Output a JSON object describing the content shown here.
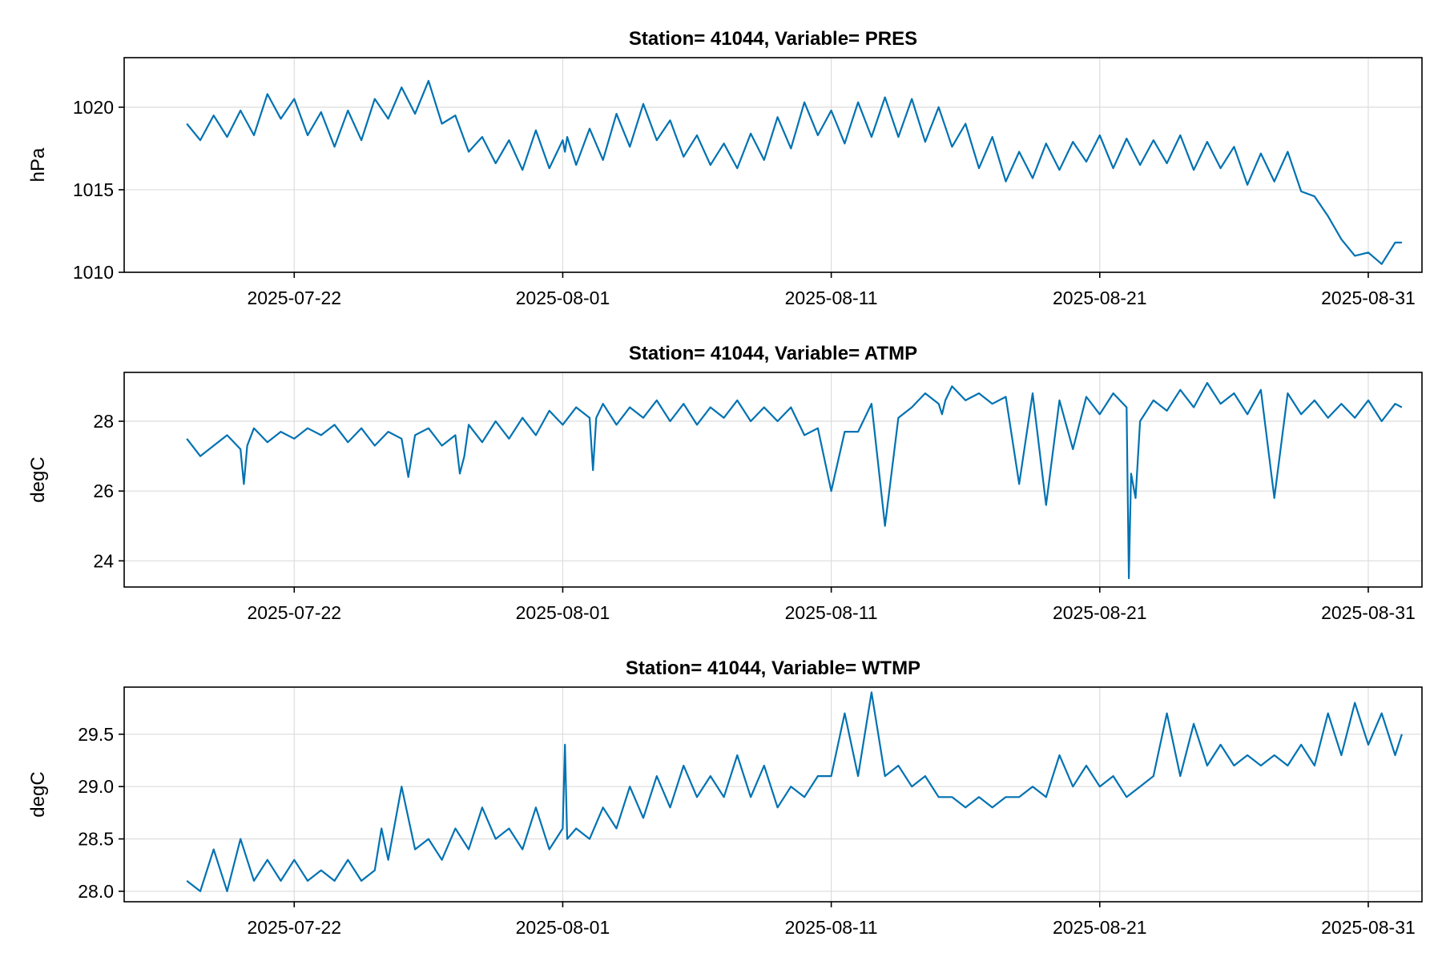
{
  "colors": {
    "series": "#0072b2"
  },
  "chart_data": [
    {
      "type": "line",
      "title": "Station= 41044, Variable= PRES",
      "xlabel": "",
      "ylabel": "hPa",
      "x_ticks": [
        "2025-07-22",
        "2025-08-01",
        "2025-08-11",
        "2025-08-21",
        "2025-08-31"
      ],
      "xlim": [
        "2025-07-15T16:00",
        "2025-09-02T00:00"
      ],
      "ylim": [
        1010,
        1023
      ],
      "y_ticks": [
        1010,
        1015,
        1020
      ],
      "y_tick_labels": [
        "1010",
        "1015",
        "1020"
      ],
      "grid": true,
      "series": [
        {
          "name": "",
          "x": [
            "2025-07-18T00:00",
            "2025-07-18T12:00",
            "2025-07-19T00:00",
            "2025-07-19T12:00",
            "2025-07-20T00:00",
            "2025-07-20T12:00",
            "2025-07-21T00:00",
            "2025-07-21T12:00",
            "2025-07-22T00:00",
            "2025-07-22T12:00",
            "2025-07-23T00:00",
            "2025-07-23T12:00",
            "2025-07-24T00:00",
            "2025-07-24T12:00",
            "2025-07-25T00:00",
            "2025-07-25T12:00",
            "2025-07-26T00:00",
            "2025-07-26T12:00",
            "2025-07-27T00:00",
            "2025-07-27T12:00",
            "2025-07-28T00:00",
            "2025-07-28T12:00",
            "2025-07-29T00:00",
            "2025-07-29T12:00",
            "2025-07-30T00:00",
            "2025-07-30T12:00",
            "2025-07-31T00:00",
            "2025-07-31T12:00",
            "2025-08-01T00:00",
            "2025-08-01T02:00",
            "2025-08-01T04:00",
            "2025-08-01T12:00",
            "2025-08-02T00:00",
            "2025-08-02T12:00",
            "2025-08-03T00:00",
            "2025-08-03T12:00",
            "2025-08-04T00:00",
            "2025-08-04T12:00",
            "2025-08-05T00:00",
            "2025-08-05T12:00",
            "2025-08-06T00:00",
            "2025-08-06T12:00",
            "2025-08-07T00:00",
            "2025-08-07T12:00",
            "2025-08-08T00:00",
            "2025-08-08T12:00",
            "2025-08-09T00:00",
            "2025-08-09T12:00",
            "2025-08-10T00:00",
            "2025-08-10T12:00",
            "2025-08-11T00:00",
            "2025-08-11T12:00",
            "2025-08-12T00:00",
            "2025-08-12T12:00",
            "2025-08-13T00:00",
            "2025-08-13T12:00",
            "2025-08-14T00:00",
            "2025-08-14T12:00",
            "2025-08-15T00:00",
            "2025-08-15T12:00",
            "2025-08-16T00:00",
            "2025-08-16T12:00",
            "2025-08-17T00:00",
            "2025-08-17T12:00",
            "2025-08-18T00:00",
            "2025-08-18T12:00",
            "2025-08-19T00:00",
            "2025-08-19T12:00",
            "2025-08-20T00:00",
            "2025-08-20T12:00",
            "2025-08-21T00:00",
            "2025-08-21T12:00",
            "2025-08-22T00:00",
            "2025-08-22T12:00",
            "2025-08-23T00:00",
            "2025-08-23T12:00",
            "2025-08-24T00:00",
            "2025-08-24T12:00",
            "2025-08-25T00:00",
            "2025-08-25T12:00",
            "2025-08-26T00:00",
            "2025-08-26T12:00",
            "2025-08-27T00:00",
            "2025-08-27T12:00",
            "2025-08-28T00:00",
            "2025-08-28T12:00",
            "2025-08-29T00:00",
            "2025-08-29T12:00",
            "2025-08-30T00:00",
            "2025-08-30T12:00",
            "2025-08-31T00:00",
            "2025-08-31T12:00",
            "2025-09-01T00:00",
            "2025-09-01T06:00"
          ],
          "y": [
            1019.0,
            1018.0,
            1019.5,
            1018.2,
            1019.8,
            1018.3,
            1020.8,
            1019.3,
            1020.5,
            1018.3,
            1019.7,
            1017.6,
            1019.8,
            1018.0,
            1020.5,
            1019.3,
            1021.2,
            1019.6,
            1021.6,
            1019.0,
            1019.5,
            1017.3,
            1018.2,
            1016.6,
            1018.0,
            1016.2,
            1018.6,
            1016.3,
            1018.0,
            1017.3,
            1018.2,
            1016.5,
            1018.7,
            1016.8,
            1019.6,
            1017.6,
            1020.2,
            1018.0,
            1019.2,
            1017.0,
            1018.3,
            1016.5,
            1017.8,
            1016.3,
            1018.4,
            1016.8,
            1019.4,
            1017.5,
            1020.3,
            1018.3,
            1019.8,
            1017.8,
            1020.3,
            1018.2,
            1020.6,
            1018.2,
            1020.5,
            1017.9,
            1020.0,
            1017.6,
            1019.0,
            1016.3,
            1018.2,
            1015.5,
            1017.3,
            1015.7,
            1017.8,
            1016.2,
            1017.9,
            1016.7,
            1018.3,
            1016.3,
            1018.1,
            1016.5,
            1018.0,
            1016.6,
            1018.3,
            1016.2,
            1017.9,
            1016.3,
            1017.6,
            1015.3,
            1017.2,
            1015.5,
            1017.3,
            1014.9,
            1014.6,
            1013.4,
            1012.0,
            1011.0,
            1011.2,
            1010.5,
            1011.8,
            1011.8
          ],
          "note": ""
        }
      ]
    },
    {
      "type": "line",
      "title": "Station= 41044, Variable= ATMP",
      "xlabel": "",
      "ylabel": "degC",
      "x_ticks": [
        "2025-07-22",
        "2025-08-01",
        "2025-08-11",
        "2025-08-21",
        "2025-08-31"
      ],
      "xlim": [
        "2025-07-15T16:00",
        "2025-09-02T00:00"
      ],
      "ylim": [
        23.25,
        29.4
      ],
      "y_ticks": [
        24,
        26,
        28
      ],
      "y_tick_labels": [
        "24",
        "26",
        "28"
      ],
      "grid": true,
      "series": [
        {
          "name": "",
          "x": [
            "2025-07-18T00:00",
            "2025-07-18T12:00",
            "2025-07-19T00:00",
            "2025-07-19T12:00",
            "2025-07-20T00:00",
            "2025-07-20T03:00",
            "2025-07-20T06:00",
            "2025-07-20T12:00",
            "2025-07-21T00:00",
            "2025-07-21T12:00",
            "2025-07-22T00:00",
            "2025-07-22T12:00",
            "2025-07-23T00:00",
            "2025-07-23T12:00",
            "2025-07-24T00:00",
            "2025-07-24T12:00",
            "2025-07-25T00:00",
            "2025-07-25T12:00",
            "2025-07-26T00:00",
            "2025-07-26T06:00",
            "2025-07-26T12:00",
            "2025-07-27T00:00",
            "2025-07-27T12:00",
            "2025-07-28T00:00",
            "2025-07-28T04:00",
            "2025-07-28T08:00",
            "2025-07-28T12:00",
            "2025-07-29T00:00",
            "2025-07-29T12:00",
            "2025-07-30T00:00",
            "2025-07-30T12:00",
            "2025-07-31T00:00",
            "2025-07-31T12:00",
            "2025-08-01T00:00",
            "2025-08-01T12:00",
            "2025-08-02T00:00",
            "2025-08-02T03:00",
            "2025-08-02T06:00",
            "2025-08-02T12:00",
            "2025-08-03T00:00",
            "2025-08-03T12:00",
            "2025-08-04T00:00",
            "2025-08-04T12:00",
            "2025-08-05T00:00",
            "2025-08-05T12:00",
            "2025-08-06T00:00",
            "2025-08-06T12:00",
            "2025-08-07T00:00",
            "2025-08-07T12:00",
            "2025-08-08T00:00",
            "2025-08-08T12:00",
            "2025-08-09T00:00",
            "2025-08-09T12:00",
            "2025-08-10T00:00",
            "2025-08-10T12:00",
            "2025-08-11T00:00",
            "2025-08-11T12:00",
            "2025-08-12T00:00",
            "2025-08-12T12:00",
            "2025-08-13T00:00",
            "2025-08-13T12:00",
            "2025-08-14T00:00",
            "2025-08-14T12:00",
            "2025-08-15T00:00",
            "2025-08-15T03:00",
            "2025-08-15T06:00",
            "2025-08-15T12:00",
            "2025-08-16T00:00",
            "2025-08-16T12:00",
            "2025-08-17T00:00",
            "2025-08-17T12:00",
            "2025-08-18T00:00",
            "2025-08-18T12:00",
            "2025-08-19T00:00",
            "2025-08-19T12:00",
            "2025-08-20T00:00",
            "2025-08-20T12:00",
            "2025-08-21T00:00",
            "2025-08-21T12:00",
            "2025-08-22T00:00",
            "2025-08-22T02:00",
            "2025-08-22T04:00",
            "2025-08-22T08:00",
            "2025-08-22T12:00",
            "2025-08-23T00:00",
            "2025-08-23T12:00",
            "2025-08-24T00:00",
            "2025-08-24T12:00",
            "2025-08-25T00:00",
            "2025-08-25T12:00",
            "2025-08-26T00:00",
            "2025-08-26T12:00",
            "2025-08-27T00:00",
            "2025-08-27T12:00",
            "2025-08-28T00:00",
            "2025-08-28T12:00",
            "2025-08-29T00:00",
            "2025-08-29T12:00",
            "2025-08-30T00:00",
            "2025-08-30T12:00",
            "2025-08-31T00:00",
            "2025-08-31T12:00",
            "2025-09-01T00:00",
            "2025-09-01T06:00"
          ],
          "y": [
            27.5,
            27.0,
            27.3,
            27.6,
            27.2,
            26.2,
            27.3,
            27.8,
            27.4,
            27.7,
            27.5,
            27.8,
            27.6,
            27.9,
            27.4,
            27.8,
            27.3,
            27.7,
            27.5,
            26.4,
            27.6,
            27.8,
            27.3,
            27.6,
            26.5,
            27.0,
            27.9,
            27.4,
            28.0,
            27.5,
            28.1,
            27.6,
            28.3,
            27.9,
            28.4,
            28.1,
            26.6,
            28.1,
            28.5,
            27.9,
            28.4,
            28.1,
            28.6,
            28.0,
            28.5,
            27.9,
            28.4,
            28.1,
            28.6,
            28.0,
            28.4,
            28.0,
            28.4,
            27.6,
            27.8,
            26.0,
            27.7,
            27.7,
            28.5,
            25.0,
            28.1,
            28.4,
            28.8,
            28.5,
            28.2,
            28.6,
            29.0,
            28.6,
            28.8,
            28.5,
            28.7,
            26.2,
            28.8,
            25.6,
            28.6,
            27.2,
            28.7,
            28.2,
            28.8,
            28.4,
            23.5,
            26.5,
            25.8,
            28.0,
            28.6,
            28.3,
            28.9,
            28.4,
            29.1,
            28.5,
            28.8,
            28.2,
            28.9,
            25.8,
            28.8,
            28.2,
            28.6,
            28.1,
            28.5,
            28.1,
            28.6,
            28.0,
            28.5,
            28.4
          ],
          "note": ""
        }
      ]
    },
    {
      "type": "line",
      "title": "Station= 41044, Variable= WTMP",
      "xlabel": "",
      "ylabel": "degC",
      "x_ticks": [
        "2025-07-22",
        "2025-08-01",
        "2025-08-11",
        "2025-08-21",
        "2025-08-31"
      ],
      "xlim": [
        "2025-07-15T16:00",
        "2025-09-02T00:00"
      ],
      "ylim": [
        27.9,
        29.95
      ],
      "y_ticks": [
        28.0,
        28.5,
        29.0,
        29.5
      ],
      "y_tick_labels": [
        "28.0",
        "28.5",
        "29.0",
        "29.5"
      ],
      "grid": true,
      "series": [
        {
          "name": "",
          "x": [
            "2025-07-18T00:00",
            "2025-07-18T12:00",
            "2025-07-19T00:00",
            "2025-07-19T12:00",
            "2025-07-20T00:00",
            "2025-07-20T12:00",
            "2025-07-21T00:00",
            "2025-07-21T12:00",
            "2025-07-22T00:00",
            "2025-07-22T12:00",
            "2025-07-23T00:00",
            "2025-07-23T12:00",
            "2025-07-24T00:00",
            "2025-07-24T12:00",
            "2025-07-25T00:00",
            "2025-07-25T06:00",
            "2025-07-25T12:00",
            "2025-07-26T00:00",
            "2025-07-26T12:00",
            "2025-07-27T00:00",
            "2025-07-27T12:00",
            "2025-07-28T00:00",
            "2025-07-28T12:00",
            "2025-07-29T00:00",
            "2025-07-29T12:00",
            "2025-07-30T00:00",
            "2025-07-30T12:00",
            "2025-07-31T00:00",
            "2025-07-31T12:00",
            "2025-08-01T00:00",
            "2025-08-01T02:00",
            "2025-08-01T04:00",
            "2025-08-01T12:00",
            "2025-08-02T00:00",
            "2025-08-02T12:00",
            "2025-08-03T00:00",
            "2025-08-03T12:00",
            "2025-08-04T00:00",
            "2025-08-04T12:00",
            "2025-08-05T00:00",
            "2025-08-05T12:00",
            "2025-08-06T00:00",
            "2025-08-06T12:00",
            "2025-08-07T00:00",
            "2025-08-07T12:00",
            "2025-08-08T00:00",
            "2025-08-08T12:00",
            "2025-08-09T00:00",
            "2025-08-09T12:00",
            "2025-08-10T00:00",
            "2025-08-10T12:00",
            "2025-08-11T00:00",
            "2025-08-11T12:00",
            "2025-08-12T00:00",
            "2025-08-12T12:00",
            "2025-08-13T00:00",
            "2025-08-13T12:00",
            "2025-08-14T00:00",
            "2025-08-14T12:00",
            "2025-08-15T00:00",
            "2025-08-15T12:00",
            "2025-08-16T00:00",
            "2025-08-16T12:00",
            "2025-08-17T00:00",
            "2025-08-17T12:00",
            "2025-08-18T00:00",
            "2025-08-18T12:00",
            "2025-08-19T00:00",
            "2025-08-19T12:00",
            "2025-08-20T00:00",
            "2025-08-20T12:00",
            "2025-08-21T00:00",
            "2025-08-21T12:00",
            "2025-08-22T00:00",
            "2025-08-22T12:00",
            "2025-08-23T00:00",
            "2025-08-23T12:00",
            "2025-08-24T00:00",
            "2025-08-24T12:00",
            "2025-08-25T00:00",
            "2025-08-25T12:00",
            "2025-08-26T00:00",
            "2025-08-26T12:00",
            "2025-08-27T00:00",
            "2025-08-27T12:00",
            "2025-08-28T00:00",
            "2025-08-28T12:00",
            "2025-08-29T00:00",
            "2025-08-29T12:00",
            "2025-08-30T00:00",
            "2025-08-30T12:00",
            "2025-08-31T00:00",
            "2025-08-31T12:00",
            "2025-09-01T00:00",
            "2025-09-01T06:00"
          ],
          "y": [
            28.1,
            28.0,
            28.4,
            28.0,
            28.5,
            28.1,
            28.3,
            28.1,
            28.3,
            28.1,
            28.2,
            28.1,
            28.3,
            28.1,
            28.2,
            28.6,
            28.3,
            29.0,
            28.4,
            28.5,
            28.3,
            28.6,
            28.4,
            28.8,
            28.5,
            28.6,
            28.4,
            28.8,
            28.4,
            28.6,
            29.4,
            28.5,
            28.6,
            28.5,
            28.8,
            28.6,
            29.0,
            28.7,
            29.1,
            28.8,
            29.2,
            28.9,
            29.1,
            28.9,
            29.3,
            28.9,
            29.2,
            28.8,
            29.0,
            28.9,
            29.1,
            29.1,
            29.7,
            29.1,
            29.9,
            29.1,
            29.2,
            29.0,
            29.1,
            28.9,
            28.9,
            28.8,
            28.9,
            28.8,
            28.9,
            28.9,
            29.0,
            28.9,
            29.3,
            29.0,
            29.2,
            29.0,
            29.1,
            28.9,
            29.0,
            29.1,
            29.7,
            29.1,
            29.6,
            29.2,
            29.4,
            29.2,
            29.3,
            29.2,
            29.3,
            29.2,
            29.4,
            29.2,
            29.7,
            29.3,
            29.8,
            29.4,
            29.7,
            29.3,
            29.5
          ],
          "note": ""
        }
      ]
    }
  ]
}
